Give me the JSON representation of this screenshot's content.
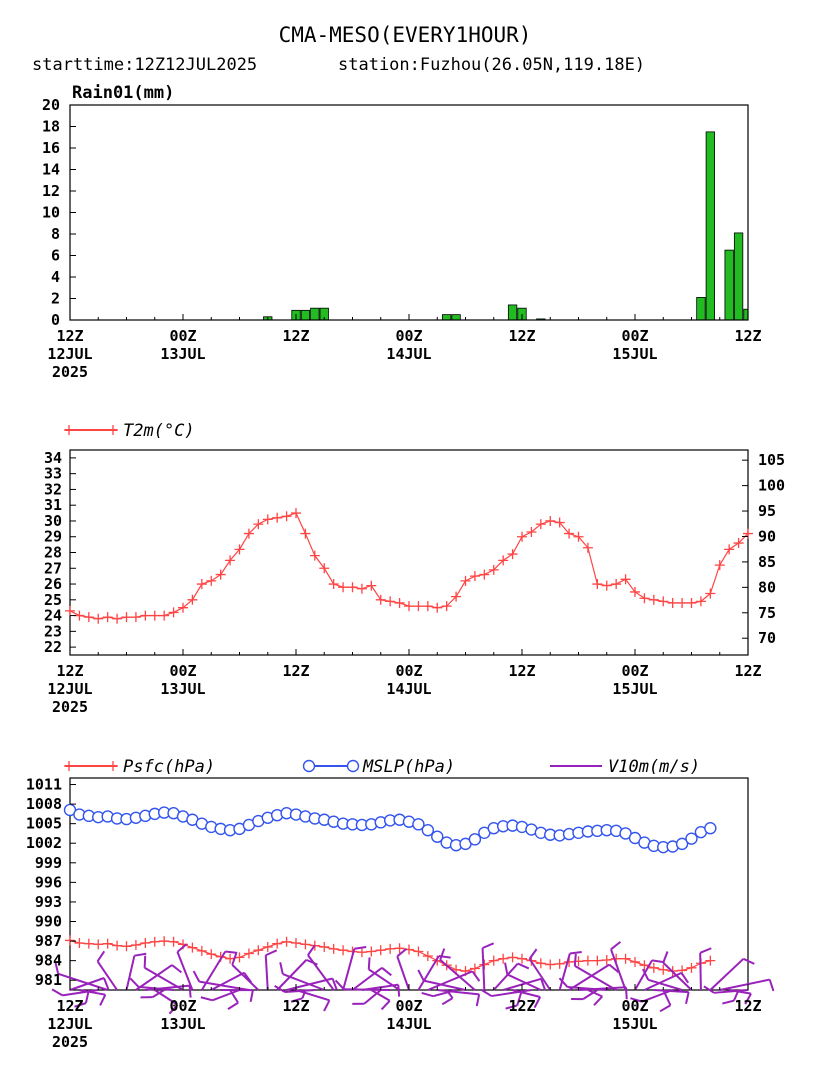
{
  "title": "CMA-MESO(EVERY1HOUR)",
  "subtitle_start": "starttime:12Z12JUL2025",
  "subtitle_station": "station:Fuzhou(26.05N,119.18E)",
  "time_axis": {
    "range_hours": [
      0,
      72
    ],
    "ticks": [
      {
        "hour": 0,
        "l1": "12Z",
        "l2": "12JUL",
        "l3": "2025"
      },
      {
        "hour": 12,
        "l1": "00Z",
        "l2": "13JUL",
        "l3": ""
      },
      {
        "hour": 24,
        "l1": "12Z",
        "l2": "",
        "l3": ""
      },
      {
        "hour": 36,
        "l1": "00Z",
        "l2": "14JUL",
        "l3": ""
      },
      {
        "hour": 48,
        "l1": "12Z",
        "l2": "",
        "l3": ""
      },
      {
        "hour": 60,
        "l1": "00Z",
        "l2": "15JUL",
        "l3": ""
      },
      {
        "hour": 72,
        "l1": "12Z",
        "l2": "",
        "l3": ""
      }
    ]
  },
  "chart_data": [
    {
      "type": "bar",
      "title": "Rain01(mm)",
      "ylim": [
        0,
        20
      ],
      "yticks": [
        "0",
        "2",
        "4",
        "6",
        "8",
        "10",
        "12",
        "14",
        "16",
        "18",
        "20"
      ],
      "color": "#22bb22",
      "bars": [
        {
          "x": 21,
          "v": 0.3
        },
        {
          "x": 24,
          "v": 0.9
        },
        {
          "x": 25,
          "v": 0.9
        },
        {
          "x": 26,
          "v": 1.1
        },
        {
          "x": 27,
          "v": 1.1
        },
        {
          "x": 40,
          "v": 0.5
        },
        {
          "x": 41,
          "v": 0.5
        },
        {
          "x": 47,
          "v": 1.4
        },
        {
          "x": 48,
          "v": 1.1
        },
        {
          "x": 50,
          "v": 0.1
        },
        {
          "x": 67,
          "v": 2.1
        },
        {
          "x": 68,
          "v": 17.5
        },
        {
          "x": 70,
          "v": 6.5
        },
        {
          "x": 71,
          "v": 8.1
        },
        {
          "x": 72,
          "v": 1.0
        }
      ]
    },
    {
      "type": "line",
      "ylim_left": [
        21.5,
        34.5
      ],
      "yticks_left": [
        "22",
        "23",
        "24",
        "25",
        "26",
        "27",
        "28",
        "29",
        "30",
        "31",
        "32",
        "33",
        "34"
      ],
      "ylim_right": [
        66.7,
        107
      ],
      "yticks_right": [
        "70",
        "75",
        "80",
        "85",
        "90",
        "95",
        "100",
        "105"
      ],
      "series": [
        {
          "name": "T2m(°C)",
          "axis": "left",
          "color": "#ff4444",
          "marker": "plus",
          "values": [
            24.3,
            24.0,
            23.9,
            23.8,
            23.9,
            23.8,
            23.9,
            23.9,
            24.0,
            24.0,
            24.0,
            24.2,
            24.5,
            25.0,
            26.0,
            26.2,
            26.6,
            27.5,
            28.2,
            29.2,
            29.8,
            30.1,
            30.2,
            30.3,
            30.5,
            29.2,
            27.8,
            27.0,
            26.0,
            25.8,
            25.8,
            25.7,
            25.9,
            25.0,
            24.9,
            24.8,
            24.6,
            24.6,
            24.6,
            24.5,
            24.6,
            25.2,
            26.2,
            26.5,
            26.6,
            26.9,
            27.5,
            27.9,
            29.0,
            29.3,
            29.8,
            30.0,
            29.9,
            29.2,
            29.0,
            28.3,
            26.0,
            25.9,
            26.0,
            26.3,
            25.5,
            25.1,
            25.0,
            24.9,
            24.8,
            24.8,
            24.8,
            24.9,
            25.4,
            27.2,
            28.2,
            28.6,
            29.2
          ]
        }
      ]
    },
    {
      "type": "line",
      "ylim": [
        979.5,
        1012
      ],
      "yticks": [
        "981",
        "984",
        "987",
        "990",
        "993",
        "996",
        "999",
        "1002",
        "1005",
        "1008",
        "1011"
      ],
      "series": [
        {
          "name": "Psfc(hPa)",
          "color": "#ff4444",
          "marker": "plus",
          "values": [
            987.1,
            986.7,
            986.6,
            986.5,
            986.6,
            986.3,
            986.2,
            986.4,
            986.7,
            986.9,
            987.0,
            986.9,
            986.5,
            986.0,
            985.5,
            985.0,
            984.6,
            984.3,
            984.5,
            985.1,
            985.6,
            986.1,
            986.6,
            986.9,
            986.7,
            986.5,
            986.3,
            986.1,
            985.8,
            985.6,
            985.4,
            985.3,
            985.4,
            985.6,
            985.8,
            985.9,
            985.7,
            985.4,
            984.7,
            984.0,
            983.3,
            982.6,
            982.4,
            982.8,
            983.4,
            984.0,
            984.3,
            984.5,
            984.3,
            984.0,
            983.6,
            983.4,
            983.5,
            983.8,
            983.9,
            984.0,
            984.0,
            984.1,
            984.3,
            984.3,
            983.8,
            983.3,
            982.9,
            982.6,
            982.4,
            982.5,
            982.9,
            983.6,
            984.0
          ]
        },
        {
          "name": "MSLP(hPa)",
          "color": "#3355ee",
          "marker": "circle",
          "values": [
            1007.1,
            1006.4,
            1006.2,
            1006.0,
            1006.1,
            1005.8,
            1005.7,
            1005.9,
            1006.2,
            1006.5,
            1006.7,
            1006.6,
            1006.1,
            1005.6,
            1005.0,
            1004.5,
            1004.2,
            1004.0,
            1004.2,
            1004.8,
            1005.4,
            1005.9,
            1006.3,
            1006.6,
            1006.4,
            1006.1,
            1005.8,
            1005.6,
            1005.3,
            1005.0,
            1004.9,
            1004.8,
            1004.9,
            1005.2,
            1005.5,
            1005.6,
            1005.3,
            1004.9,
            1004.0,
            1003.0,
            1002.1,
            1001.7,
            1001.9,
            1002.6,
            1003.6,
            1004.3,
            1004.6,
            1004.7,
            1004.5,
            1004.1,
            1003.6,
            1003.3,
            1003.2,
            1003.4,
            1003.6,
            1003.8,
            1003.9,
            1004.0,
            1003.9,
            1003.5,
            1002.8,
            1002.1,
            1001.6,
            1001.4,
            1001.5,
            1001.9,
            1002.7,
            1003.7,
            1004.3
          ]
        },
        {
          "name": "V10m(m/s)",
          "color": "#9922bb",
          "marker": "barb"
        }
      ]
    }
  ]
}
